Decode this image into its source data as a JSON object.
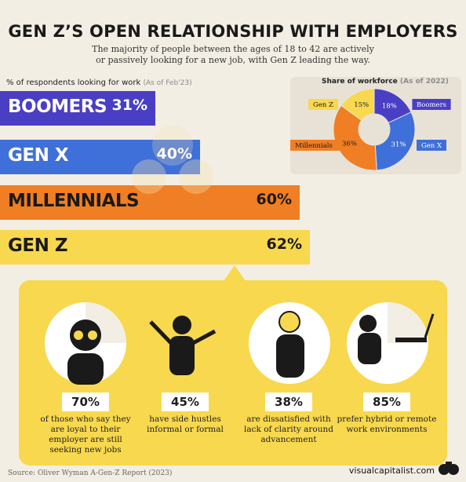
{
  "header": {
    "title": "GEN Z’S OPEN RELATIONSHIP WITH EMPLOYERS",
    "subtitle": "The majority of people between the ages of 18 to 42 are actively or passively looking for a new job, with Gen Z leading the way."
  },
  "chart_data": [
    {
      "type": "bar",
      "title": "% of respondents looking for work",
      "note": "(As of Feb'23)",
      "categories": [
        "BOOMERS",
        "GEN X",
        "MILLENNIALS",
        "GEN Z"
      ],
      "values": [
        31,
        40,
        60,
        62
      ],
      "value_labels": [
        "31%",
        "40%",
        "60%",
        "62%"
      ],
      "colors": [
        "#4a3fc4",
        "#3f6fd8",
        "#f07e24",
        "#f8d84e"
      ],
      "label_colors": [
        "#ffffff",
        "#ffffff",
        "#1a1a1a",
        "#1a1a1a"
      ],
      "xlim": [
        0,
        80
      ]
    },
    {
      "type": "pie",
      "title": "Share of workforce",
      "note": "(As of 2022)",
      "categories": [
        "Boomers",
        "Gen X",
        "Millennials",
        "Gen Z"
      ],
      "values": [
        18,
        31,
        36,
        15
      ],
      "value_labels": [
        "18%",
        "31%",
        "36%",
        "15%"
      ],
      "colors": [
        "#4a3fc4",
        "#3f6fd8",
        "#f07e24",
        "#f8d84e"
      ],
      "legend_placement": "around"
    }
  ],
  "stats": [
    {
      "value": "70%",
      "desc": "of those who say they are loyal to their employer are still seeking new jobs"
    },
    {
      "value": "45%",
      "desc": "have side hustles informal or formal"
    },
    {
      "value": "38%",
      "desc": "are dissatisfied with lack of clarity around advancement"
    },
    {
      "value": "85%",
      "desc": "prefer hybrid or remote work environments"
    }
  ],
  "footer": {
    "source": "Source: Oliver Wyman A-Gen-Z Report (2023)",
    "brand": "visualcapitalist.com"
  }
}
